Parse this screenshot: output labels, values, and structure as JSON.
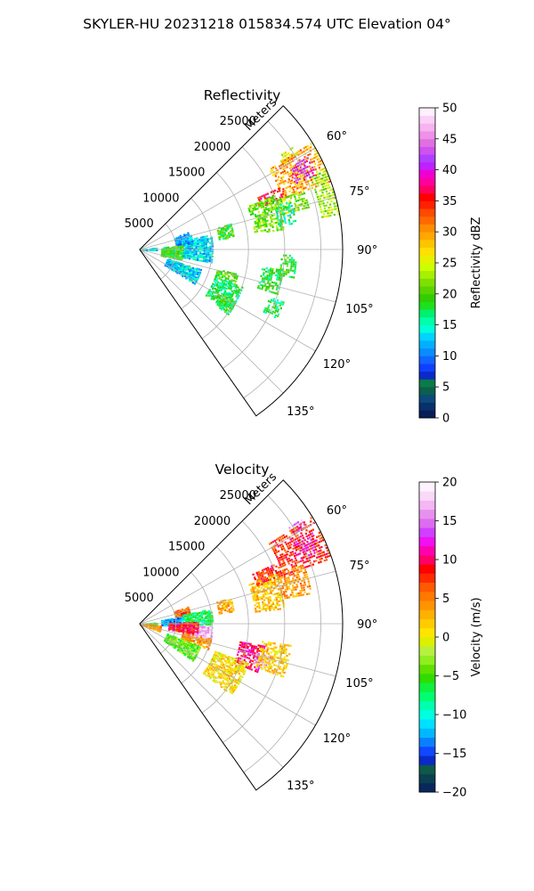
{
  "figure": {
    "suptitle": "SKYLER-HU  20231218  015834.574 UTC Elevation 04°"
  },
  "chart_data": [
    {
      "type": "ppi-sector",
      "title": "Reflectivity",
      "radial_label": "Meters",
      "range_ticks": [
        5000,
        10000,
        15000,
        20000,
        25000
      ],
      "range_tick_labels": [
        "5000",
        "10000",
        "15000",
        "20000",
        "25000"
      ],
      "range_max": 28000,
      "azimuth_range": [
        45,
        145
      ],
      "azimuth_ticks": [
        60,
        75,
        90,
        105,
        120,
        135
      ],
      "azimuth_tick_labels": [
        "60°",
        "75°",
        "90°",
        "105°",
        "120°",
        "135°"
      ],
      "grid": true,
      "colorbar": {
        "label": "Reflectivity dBZ",
        "vmin": 0,
        "vmax": 50,
        "ticks": [
          0,
          5,
          10,
          15,
          20,
          25,
          30,
          35,
          40,
          45,
          50
        ],
        "tick_labels": [
          "0",
          "5",
          "10",
          "15",
          "20",
          "25",
          "30",
          "35",
          "40",
          "45",
          "50"
        ],
        "colors": [
          "#081d58",
          "#08306b",
          "#0b4a7a",
          "#0d5f4d",
          "#0a7a47",
          "#0a2ac8",
          "#1040ff",
          "#1064ff",
          "#0a8cff",
          "#00b0ff",
          "#00d4ff",
          "#00ffd8",
          "#00ffa8",
          "#00f070",
          "#1ee01e",
          "#33cc00",
          "#5ad400",
          "#7ee000",
          "#a6f000",
          "#ccff00",
          "#e8f000",
          "#ffe000",
          "#ffc400",
          "#ffa800",
          "#ff8c00",
          "#ff6a00",
          "#ff4a00",
          "#ff2000",
          "#ff0000",
          "#ff0060",
          "#ff00a0",
          "#f000d0",
          "#c020ff",
          "#b040ff",
          "#d050f0",
          "#e070e0",
          "#ef90ea",
          "#f7b2f0",
          "#fbd0f6",
          "#fff0ff"
        ]
      },
      "regions": [
        {
          "az": [
            56,
            59
          ],
          "r": [
            23000,
            25500
          ],
          "value": 25
        },
        {
          "az": [
            58,
            70
          ],
          "r": [
            21000,
            28000
          ],
          "value": 30
        },
        {
          "az": [
            61,
            67
          ],
          "r": [
            23500,
            26500
          ],
          "value": 40
        },
        {
          "az": [
            66,
            70
          ],
          "r": [
            17500,
            21500
          ],
          "value": 36
        },
        {
          "az": [
            68,
            82
          ],
          "r": [
            16000,
            20000
          ],
          "value": 21
        },
        {
          "az": [
            66,
            80
          ],
          "r": [
            25500,
            28000
          ],
          "value": 23
        },
        {
          "az": [
            70,
            76
          ],
          "r": [
            20000,
            24000
          ],
          "value": 22
        },
        {
          "az": [
            74,
            82
          ],
          "r": [
            11000,
            13000
          ],
          "value": 19
        },
        {
          "az": [
            72,
            80
          ],
          "r": [
            19500,
            22000
          ],
          "value": 16
        },
        {
          "az": [
            83,
            90
          ],
          "r": [
            0,
            2500
          ],
          "value": 13
        },
        {
          "az": [
            78,
            100
          ],
          "r": [
            6000,
            10000
          ],
          "value": 13
        },
        {
          "az": [
            70,
            82
          ],
          "r": [
            5000,
            7500
          ],
          "value": 11
        },
        {
          "az": [
            84,
            104
          ],
          "r": [
            3000,
            6000
          ],
          "value": 19
        },
        {
          "az": [
            108,
            122
          ],
          "r": [
            4000,
            9000
          ],
          "value": 13
        },
        {
          "az": [
            104,
            110
          ],
          "r": [
            11000,
            14000
          ],
          "value": 20
        },
        {
          "az": [
            110,
            125
          ],
          "r": [
            11000,
            15000
          ],
          "value": 17
        },
        {
          "az": [
            98,
            108
          ],
          "r": [
            17000,
            20000
          ],
          "value": 18
        },
        {
          "az": [
            92,
            100
          ],
          "r": [
            19500,
            21500
          ],
          "value": 19
        },
        {
          "az": [
            118,
            126
          ],
          "r": [
            13000,
            15000
          ],
          "value": 19
        },
        {
          "az": [
            110,
            117
          ],
          "r": [
            19000,
            21000
          ],
          "value": 18
        }
      ]
    },
    {
      "type": "ppi-sector",
      "title": "Velocity",
      "radial_label": "Meters",
      "range_ticks": [
        5000,
        10000,
        15000,
        20000,
        25000
      ],
      "range_tick_labels": [
        "5000",
        "10000",
        "15000",
        "20000",
        "25000"
      ],
      "range_max": 28000,
      "azimuth_range": [
        45,
        145
      ],
      "azimuth_ticks": [
        60,
        75,
        90,
        105,
        120,
        135
      ],
      "azimuth_tick_labels": [
        "60°",
        "75°",
        "90°",
        "105°",
        "120°",
        "135°"
      ],
      "grid": true,
      "colorbar": {
        "label": "Velocity (m/s)",
        "vmin": -20,
        "vmax": 20,
        "ticks": [
          -20,
          -15,
          -10,
          -5,
          0,
          5,
          10,
          15,
          20
        ],
        "tick_labels": [
          "−20",
          "−15",
          "−10",
          "−5",
          "0",
          "5",
          "10",
          "15",
          "20"
        ],
        "colors": [
          "#08285c",
          "#0b4050",
          "#0d5a48",
          "#0a2ac8",
          "#1048ff",
          "#0a80ff",
          "#00b8ff",
          "#00e0ff",
          "#00ffe0",
          "#00ffb0",
          "#00ff6e",
          "#10f040",
          "#30dc00",
          "#60e000",
          "#90ee20",
          "#b8f040",
          "#dcf000",
          "#ffe400",
          "#ffcc00",
          "#ffb000",
          "#ff9400",
          "#ff7800",
          "#ff5a00",
          "#ff2a00",
          "#ff0000",
          "#ff0066",
          "#ff00b0",
          "#f010f0",
          "#d040ff",
          "#dd6cf0",
          "#e890ee",
          "#f4b6f4",
          "#fad8f8",
          "#fff2ff"
        ]
      },
      "regions": [
        {
          "az": [
            57,
            60
          ],
          "r": [
            24500,
            26500
          ],
          "value": 15
        },
        {
          "az": [
            58,
            71
          ],
          "r": [
            21000,
            28000
          ],
          "value": 8
        },
        {
          "az": [
            62,
            68
          ],
          "r": [
            24000,
            27000
          ],
          "value": 11
        },
        {
          "az": [
            66,
            72
          ],
          "r": [
            17000,
            21000
          ],
          "value": 8
        },
        {
          "az": [
            70,
            84
          ],
          "r": [
            16000,
            20000
          ],
          "value": 2
        },
        {
          "az": [
            70,
            80
          ],
          "r": [
            20000,
            24000
          ],
          "value": 4
        },
        {
          "az": [
            74,
            82
          ],
          "r": [
            11000,
            13000
          ],
          "value": 3
        },
        {
          "az": [
            70,
            78
          ],
          "r": [
            5000,
            7000
          ],
          "value": 6
        },
        {
          "az": [
            78,
            90
          ],
          "r": [
            6000,
            10000
          ],
          "value": -7
        },
        {
          "az": [
            80,
            92
          ],
          "r": [
            3000,
            6000
          ],
          "value": -13
        },
        {
          "az": [
            92,
            104
          ],
          "r": [
            6000,
            10000
          ],
          "value": 17
        },
        {
          "az": [
            88,
            100
          ],
          "r": [
            4000,
            8000
          ],
          "value": 9
        },
        {
          "az": [
            102,
            110
          ],
          "r": [
            6000,
            10000
          ],
          "value": 4
        },
        {
          "az": [
            100,
            112
          ],
          "r": [
            14000,
            17500
          ],
          "value": 10
        },
        {
          "az": [
            104,
            110
          ],
          "r": [
            16500,
            19000
          ],
          "value": 16
        },
        {
          "az": [
            110,
            125
          ],
          "r": [
            4000,
            9000
          ],
          "value": -4
        },
        {
          "az": [
            85,
            95
          ],
          "r": [
            0,
            2500
          ],
          "value": -5
        },
        {
          "az": [
            95,
            110
          ],
          "r": [
            0,
            3000
          ],
          "value": 4
        },
        {
          "az": [
            98,
            110
          ],
          "r": [
            17000,
            21000
          ],
          "value": 2
        },
        {
          "az": [
            110,
            128
          ],
          "r": [
            11000,
            16000
          ],
          "value": 1
        }
      ]
    }
  ]
}
